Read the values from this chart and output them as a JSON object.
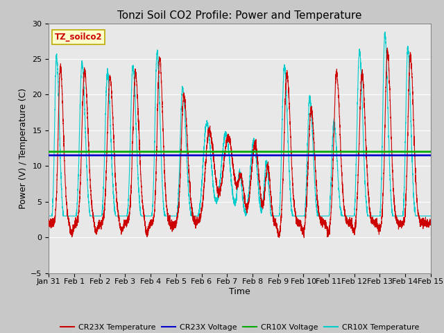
{
  "title": "Tonzi Soil CO2 Profile: Power and Temperature",
  "xlabel": "Time",
  "ylabel": "Power (V) / Temperature (C)",
  "ylim": [
    -5,
    30
  ],
  "yticks": [
    -5,
    0,
    5,
    10,
    15,
    20,
    25,
    30
  ],
  "cr23x_voltage": 11.5,
  "cr10x_voltage": 12.0,
  "fig_bg_color": "#c8c8c8",
  "plot_bg_color": "#e8e8e8",
  "cr23x_temp_color": "#cc0000",
  "cr10x_temp_color": "#00cccc",
  "cr23x_voltage_color": "#0000cc",
  "cr10x_voltage_color": "#00aa00",
  "legend_label_cr23x_temp": "CR23X Temperature",
  "legend_label_cr23x_volt": "CR23X Voltage",
  "legend_label_cr10x_volt": "CR10X Voltage",
  "legend_label_cr10x_temp": "CR10X Temperature",
  "annotation_text": "TZ_soilco2",
  "xtick_labels": [
    "Jan 31",
    "Feb 1",
    "Feb 2",
    "Feb 3",
    "Feb 4",
    "Feb 5",
    "Feb 6",
    "Feb 7",
    "Feb 8",
    "Feb 9",
    "Feb 10",
    "Feb 11",
    "Feb 12",
    "Feb 13",
    "Feb 14",
    "Feb 15"
  ],
  "grid_color": "#ffffff",
  "title_fontsize": 11,
  "axis_fontsize": 9,
  "tick_fontsize": 8
}
